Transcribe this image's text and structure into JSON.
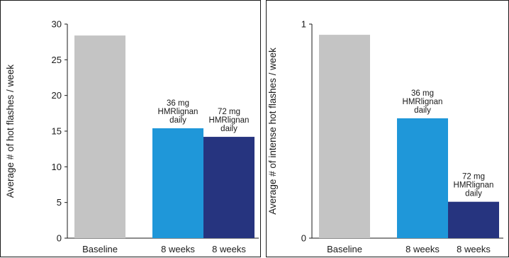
{
  "chart_data": [
    {
      "type": "bar",
      "categories": [
        "Baseline",
        "8 weeks",
        "8 weeks"
      ],
      "values": [
        28.4,
        15.4,
        14.2
      ],
      "colors": [
        "#c4c4c4",
        "#1f97d9",
        "#26347f"
      ],
      "annotations": [
        "",
        "36 mg\nHMRlignan\ndaily",
        "72 mg\nHMRlignan\ndaily"
      ],
      "ylabel": "Average # of hot flashes / week",
      "ylim": [
        0,
        30
      ],
      "yticks": [
        "0",
        "5",
        "10",
        "15",
        "20",
        "25",
        "30"
      ],
      "grid": false
    },
    {
      "type": "bar",
      "categories": [
        "Baseline",
        "8 weeks",
        "8 weeks"
      ],
      "values": [
        0.95,
        0.56,
        0.17
      ],
      "colors": [
        "#c4c4c4",
        "#1f97d9",
        "#26347f"
      ],
      "annotations": [
        "",
        "36 mg\nHMRlignan\ndaily",
        "72 mg\nHMRlignan\ndaily"
      ],
      "ylabel": "Average # of intense hot flashes / week",
      "ylim": [
        0,
        1
      ],
      "yticks": [
        "0",
        "1"
      ],
      "grid": false
    }
  ]
}
